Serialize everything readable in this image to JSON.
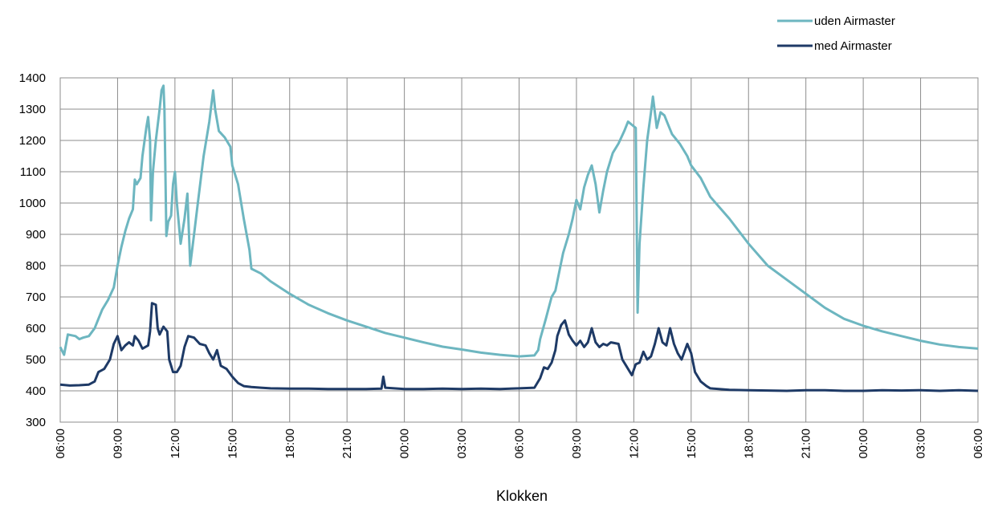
{
  "chart_data": {
    "type": "line",
    "title": "",
    "xlabel": "Klokken",
    "ylabel": "",
    "ylim": [
      300,
      1400
    ],
    "yticks": [
      300,
      400,
      500,
      600,
      700,
      800,
      900,
      1000,
      1100,
      1200,
      1300,
      1400
    ],
    "xlim": [
      0,
      48
    ],
    "xtick_labels": [
      "06:00",
      "09:00",
      "12:00",
      "15:00",
      "18:00",
      "21:00",
      "00:00",
      "03:00",
      "06:00",
      "09:00",
      "12:00",
      "15:00",
      "18:00",
      "21:00",
      "00:00",
      "03:00",
      "06:00"
    ],
    "x_unit": "hours since first 06:00 tick",
    "grid": true,
    "legend_position": "top-right",
    "series": [
      {
        "name": "uden Airmaster",
        "color": "#6db6c0",
        "points": [
          [
            0,
            540
          ],
          [
            0.2,
            515
          ],
          [
            0.4,
            580
          ],
          [
            0.8,
            575
          ],
          [
            1.0,
            565
          ],
          [
            1.2,
            570
          ],
          [
            1.5,
            575
          ],
          [
            1.8,
            600
          ],
          [
            2.0,
            630
          ],
          [
            2.2,
            660
          ],
          [
            2.5,
            690
          ],
          [
            2.8,
            730
          ],
          [
            3.0,
            800
          ],
          [
            3.2,
            860
          ],
          [
            3.4,
            910
          ],
          [
            3.6,
            950
          ],
          [
            3.8,
            980
          ],
          [
            3.9,
            1075
          ],
          [
            4.0,
            1060
          ],
          [
            4.2,
            1080
          ],
          [
            4.3,
            1150
          ],
          [
            4.5,
            1240
          ],
          [
            4.6,
            1275
          ],
          [
            4.7,
            1200
          ],
          [
            4.75,
            945
          ],
          [
            4.85,
            1100
          ],
          [
            5.0,
            1200
          ],
          [
            5.2,
            1300
          ],
          [
            5.3,
            1360
          ],
          [
            5.4,
            1375
          ],
          [
            5.45,
            1300
          ],
          [
            5.55,
            895
          ],
          [
            5.65,
            940
          ],
          [
            5.8,
            960
          ],
          [
            5.9,
            1060
          ],
          [
            6.0,
            1100
          ],
          [
            6.1,
            1000
          ],
          [
            6.3,
            870
          ],
          [
            6.5,
            950
          ],
          [
            6.65,
            1030
          ],
          [
            6.8,
            800
          ],
          [
            7.0,
            900
          ],
          [
            7.2,
            1000
          ],
          [
            7.5,
            1150
          ],
          [
            7.8,
            1260
          ],
          [
            8.0,
            1360
          ],
          [
            8.1,
            1300
          ],
          [
            8.3,
            1230
          ],
          [
            8.6,
            1210
          ],
          [
            8.9,
            1180
          ],
          [
            9.0,
            1120
          ],
          [
            9.3,
            1060
          ],
          [
            9.6,
            950
          ],
          [
            9.9,
            850
          ],
          [
            10.0,
            790
          ],
          [
            10.5,
            775
          ],
          [
            11,
            750
          ],
          [
            12,
            710
          ],
          [
            13,
            675
          ],
          [
            14,
            648
          ],
          [
            15,
            625
          ],
          [
            16,
            605
          ],
          [
            17,
            585
          ],
          [
            18,
            570
          ],
          [
            19,
            555
          ],
          [
            20,
            541
          ],
          [
            21,
            532
          ],
          [
            22,
            522
          ],
          [
            23,
            515
          ],
          [
            24,
            510
          ],
          [
            24.8,
            513
          ],
          [
            25.0,
            530
          ],
          [
            25.1,
            565
          ],
          [
            25.4,
            630
          ],
          [
            25.7,
            700
          ],
          [
            25.9,
            720
          ],
          [
            26.0,
            750
          ],
          [
            26.3,
            840
          ],
          [
            26.6,
            900
          ],
          [
            26.8,
            950
          ],
          [
            27.0,
            1010
          ],
          [
            27.2,
            980
          ],
          [
            27.4,
            1050
          ],
          [
            27.6,
            1090
          ],
          [
            27.8,
            1120
          ],
          [
            28.0,
            1060
          ],
          [
            28.2,
            970
          ],
          [
            28.4,
            1040
          ],
          [
            28.6,
            1100
          ],
          [
            28.9,
            1160
          ],
          [
            29.2,
            1190
          ],
          [
            29.5,
            1230
          ],
          [
            29.7,
            1260
          ],
          [
            29.9,
            1250
          ],
          [
            30.1,
            1240
          ],
          [
            30.2,
            650
          ],
          [
            30.3,
            870
          ],
          [
            30.5,
            1050
          ],
          [
            30.7,
            1200
          ],
          [
            30.9,
            1290
          ],
          [
            31.0,
            1340
          ],
          [
            31.2,
            1240
          ],
          [
            31.4,
            1290
          ],
          [
            31.6,
            1280
          ],
          [
            31.8,
            1250
          ],
          [
            32.0,
            1220
          ],
          [
            32.4,
            1190
          ],
          [
            32.8,
            1150
          ],
          [
            33.0,
            1120
          ],
          [
            33.5,
            1080
          ],
          [
            34,
            1020
          ],
          [
            35,
            950
          ],
          [
            36,
            870
          ],
          [
            37,
            800
          ],
          [
            38,
            755
          ],
          [
            39,
            710
          ],
          [
            40,
            665
          ],
          [
            41,
            630
          ],
          [
            42,
            608
          ],
          [
            43,
            590
          ],
          [
            44,
            575
          ],
          [
            45,
            560
          ],
          [
            46,
            548
          ],
          [
            47,
            540
          ],
          [
            48,
            535
          ]
        ]
      },
      {
        "name": "med Airmaster",
        "color": "#1e3a66",
        "points": [
          [
            0,
            420
          ],
          [
            0.5,
            417
          ],
          [
            1.0,
            418
          ],
          [
            1.5,
            420
          ],
          [
            1.8,
            430
          ],
          [
            2.0,
            460
          ],
          [
            2.3,
            470
          ],
          [
            2.6,
            500
          ],
          [
            2.8,
            550
          ],
          [
            3.0,
            575
          ],
          [
            3.2,
            530
          ],
          [
            3.4,
            545
          ],
          [
            3.6,
            555
          ],
          [
            3.8,
            545
          ],
          [
            3.9,
            575
          ],
          [
            4.1,
            560
          ],
          [
            4.3,
            535
          ],
          [
            4.6,
            545
          ],
          [
            4.7,
            590
          ],
          [
            4.8,
            680
          ],
          [
            5.0,
            675
          ],
          [
            5.1,
            600
          ],
          [
            5.2,
            580
          ],
          [
            5.4,
            605
          ],
          [
            5.6,
            590
          ],
          [
            5.7,
            500
          ],
          [
            5.9,
            460
          ],
          [
            6.1,
            460
          ],
          [
            6.3,
            480
          ],
          [
            6.5,
            540
          ],
          [
            6.7,
            575
          ],
          [
            7.0,
            570
          ],
          [
            7.3,
            550
          ],
          [
            7.6,
            545
          ],
          [
            7.8,
            520
          ],
          [
            8.0,
            500
          ],
          [
            8.2,
            530
          ],
          [
            8.4,
            480
          ],
          [
            8.7,
            470
          ],
          [
            9.0,
            445
          ],
          [
            9.3,
            425
          ],
          [
            9.6,
            415
          ],
          [
            10,
            412
          ],
          [
            10.5,
            410
          ],
          [
            11,
            408
          ],
          [
            12,
            407
          ],
          [
            13,
            407
          ],
          [
            14,
            406
          ],
          [
            15,
            406
          ],
          [
            16,
            406
          ],
          [
            16.8,
            407
          ],
          [
            16.9,
            445
          ],
          [
            17.0,
            410
          ],
          [
            18,
            406
          ],
          [
            19,
            406
          ],
          [
            20,
            407
          ],
          [
            21,
            406
          ],
          [
            22,
            407
          ],
          [
            23,
            406
          ],
          [
            24,
            408
          ],
          [
            24.8,
            410
          ],
          [
            25.1,
            440
          ],
          [
            25.3,
            475
          ],
          [
            25.5,
            470
          ],
          [
            25.7,
            490
          ],
          [
            25.9,
            530
          ],
          [
            26.0,
            575
          ],
          [
            26.2,
            610
          ],
          [
            26.4,
            625
          ],
          [
            26.6,
            580
          ],
          [
            26.8,
            560
          ],
          [
            27.0,
            545
          ],
          [
            27.2,
            560
          ],
          [
            27.4,
            540
          ],
          [
            27.6,
            555
          ],
          [
            27.8,
            600
          ],
          [
            28.0,
            555
          ],
          [
            28.2,
            540
          ],
          [
            28.4,
            550
          ],
          [
            28.6,
            545
          ],
          [
            28.8,
            555
          ],
          [
            29.2,
            550
          ],
          [
            29.4,
            500
          ],
          [
            29.6,
            480
          ],
          [
            29.8,
            460
          ],
          [
            29.9,
            450
          ],
          [
            30.1,
            485
          ],
          [
            30.3,
            490
          ],
          [
            30.5,
            525
          ],
          [
            30.7,
            500
          ],
          [
            30.9,
            510
          ],
          [
            31.1,
            550
          ],
          [
            31.3,
            600
          ],
          [
            31.5,
            555
          ],
          [
            31.7,
            545
          ],
          [
            31.9,
            600
          ],
          [
            32.1,
            550
          ],
          [
            32.3,
            520
          ],
          [
            32.5,
            500
          ],
          [
            32.8,
            550
          ],
          [
            33.0,
            520
          ],
          [
            33.2,
            460
          ],
          [
            33.5,
            430
          ],
          [
            33.8,
            415
          ],
          [
            34,
            408
          ],
          [
            35,
            403
          ],
          [
            36,
            402
          ],
          [
            37,
            401
          ],
          [
            38,
            400
          ],
          [
            39,
            402
          ],
          [
            40,
            402
          ],
          [
            41,
            400
          ],
          [
            42,
            400
          ],
          [
            43,
            402
          ],
          [
            44,
            401
          ],
          [
            45,
            402
          ],
          [
            46,
            400
          ],
          [
            47,
            402
          ],
          [
            48,
            400
          ]
        ]
      }
    ]
  }
}
